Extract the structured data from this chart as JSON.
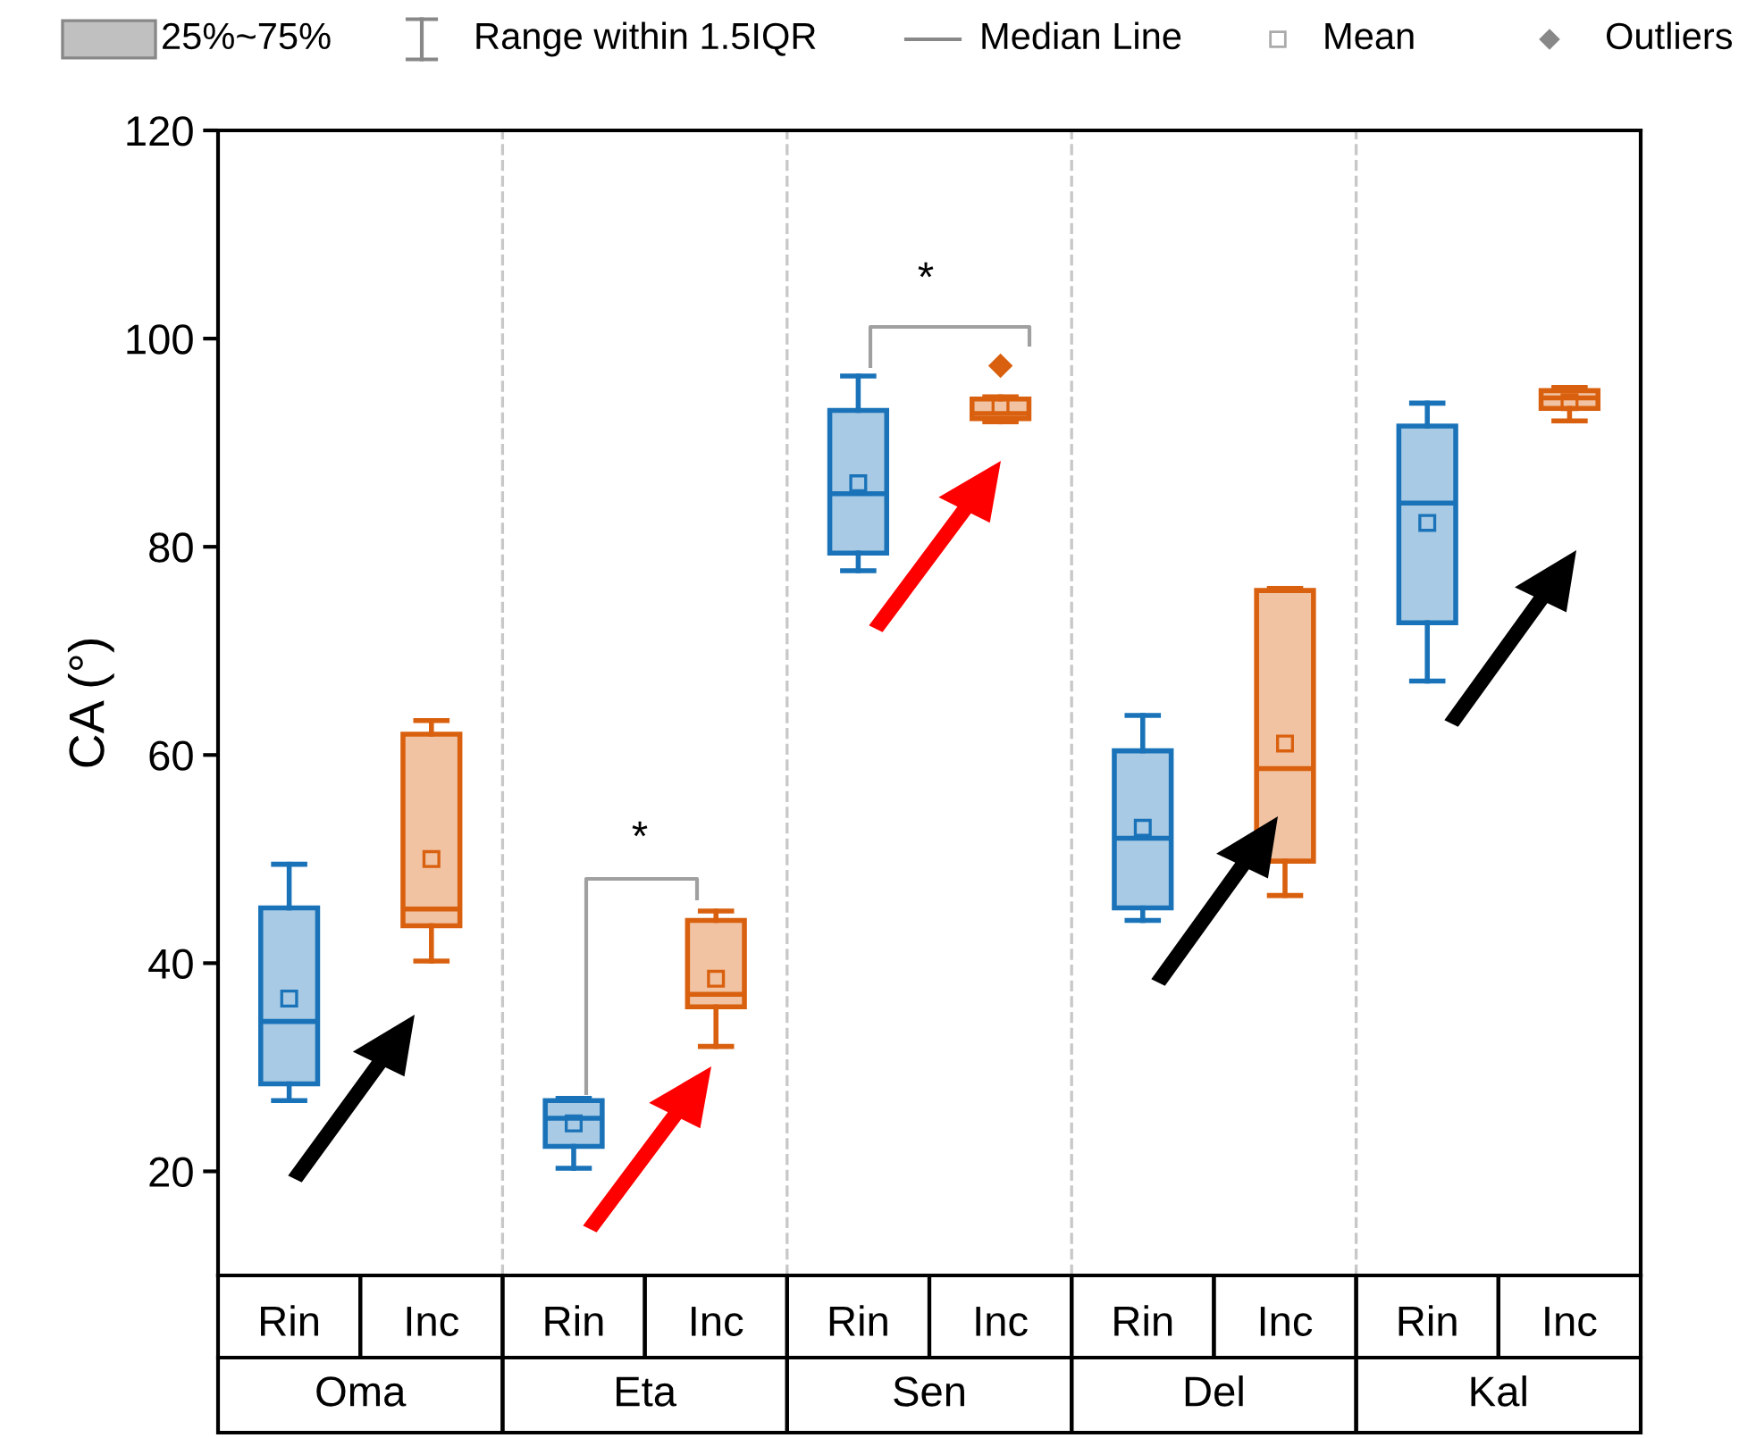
{
  "chart_data": {
    "type": "box",
    "ylabel": "CA (°)",
    "ylim": [
      10,
      120
    ],
    "yticks": [
      20,
      40,
      60,
      80,
      100,
      120
    ],
    "grid": "x",
    "categories": [
      "Rin",
      "Inc",
      "Rin",
      "Inc",
      "Rin",
      "Inc",
      "Rin",
      "Inc",
      "Rin",
      "Inc"
    ],
    "colors": [
      "#1a73b8",
      "#d9600e",
      "#1a73b8",
      "#d9600e",
      "#1a73b8",
      "#d9600e",
      "#1a73b8",
      "#d9600e",
      "#1a73b8",
      "#d9600e"
    ],
    "boxes": [
      {
        "low": 26.8,
        "q1": 28.4,
        "median": 34.4,
        "q3": 45.3,
        "high": 49.5,
        "mean": 36.6
      },
      {
        "low": 40.2,
        "q1": 43.6,
        "median": 45.2,
        "q3": 62.0,
        "high": 63.3,
        "mean": 50.0
      },
      {
        "low": 20.3,
        "q1": 22.4,
        "median": 25.1,
        "q3": 26.8,
        "high": 27.0,
        "mean": 24.6
      },
      {
        "low": 32.0,
        "q1": 35.8,
        "median": 37.0,
        "q3": 44.1,
        "high": 45.0,
        "mean": 38.5
      },
      {
        "low": 77.7,
        "q1": 79.4,
        "median": 85.1,
        "q3": 93.1,
        "high": 96.4,
        "mean": 86.1
      },
      {
        "low": 92.0,
        "q1": 92.3,
        "median": 92.8,
        "q3": 94.2,
        "high": 94.4,
        "mean": 93.5,
        "outliers": [
          97.4
        ]
      },
      {
        "low": 44.1,
        "q1": 45.3,
        "median": 52.0,
        "q3": 60.4,
        "high": 63.8,
        "mean": 53.0
      },
      {
        "low": 46.5,
        "q1": 49.8,
        "median": 58.7,
        "q3": 75.8,
        "high": 76.0,
        "mean": 61.1
      },
      {
        "low": 67.1,
        "q1": 72.7,
        "median": 84.2,
        "q3": 91.6,
        "high": 93.8,
        "mean": 82.3
      },
      {
        "low": 92.1,
        "q1": 93.3,
        "median": 94.3,
        "q3": 95.0,
        "high": 95.3,
        "mean": 93.9
      }
    ],
    "annotations": [
      "25%~75%",
      "Range within 1.5IQR",
      "Median Line",
      "Mean",
      "Outliers",
      "*",
      "*",
      "Oma",
      "Eta",
      "Sen",
      "Del",
      "Kal"
    ]
  }
}
